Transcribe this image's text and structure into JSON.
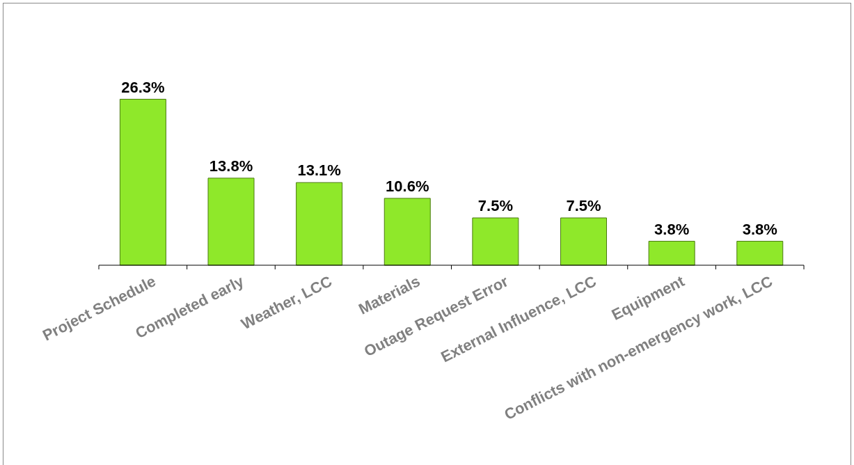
{
  "chart_data": {
    "type": "bar",
    "categories": [
      "Project Schedule",
      "Completed early",
      "Weather, LCC",
      "Materials",
      "Outage Request Error",
      "External Influence, LCC",
      "Equipment",
      "Conflicts with non-emergency work, LCC"
    ],
    "values": [
      26.3,
      13.8,
      13.1,
      10.6,
      7.5,
      7.5,
      3.8,
      3.8
    ],
    "value_labels": [
      "26.3%",
      "13.8%",
      "13.1%",
      "10.6%",
      "7.5%",
      "7.5%",
      "3.8%",
      "3.8%"
    ],
    "color": "#8fe82a",
    "grid": false,
    "legend": false
  }
}
